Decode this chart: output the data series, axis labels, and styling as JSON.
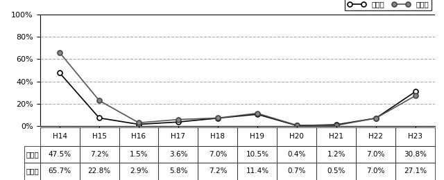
{
  "categories": [
    "H14",
    "H15",
    "H16",
    "H17",
    "H18",
    "H19",
    "H20",
    "H21",
    "H22",
    "H23"
  ],
  "general": [
    47.5,
    7.2,
    1.5,
    3.6,
    7.0,
    10.5,
    0.4,
    1.2,
    7.0,
    30.8
  ],
  "jihai": [
    65.7,
    22.8,
    2.9,
    5.8,
    7.2,
    11.4,
    0.7,
    0.5,
    7.0,
    27.1
  ],
  "general_labels": [
    "47.5%",
    "7.2%",
    "1.5%",
    "3.6%",
    "7.0%",
    "10.5%",
    "0.4%",
    "1.2%",
    "7.0%",
    "30.8%"
  ],
  "jihai_labels": [
    "65.7%",
    "22.8%",
    "2.9%",
    "5.8%",
    "7.2%",
    "11.4%",
    "0.7%",
    "0.5%",
    "7.0%",
    "27.1%"
  ],
  "row_labels": [
    "一般局",
    "自排局"
  ],
  "legend_general": "一般局",
  "legend_jihai": "自排局",
  "yticks": [
    0,
    20,
    40,
    60,
    80,
    100
  ],
  "ylim": [
    0,
    100
  ],
  "line_color_general": "#000000",
  "line_color_jihai": "#555555",
  "marker_general": "o",
  "marker_jihai": "o",
  "table_bg": "#ffffff",
  "grid_color": "#aaaaaa",
  "background_color": "#ffffff"
}
